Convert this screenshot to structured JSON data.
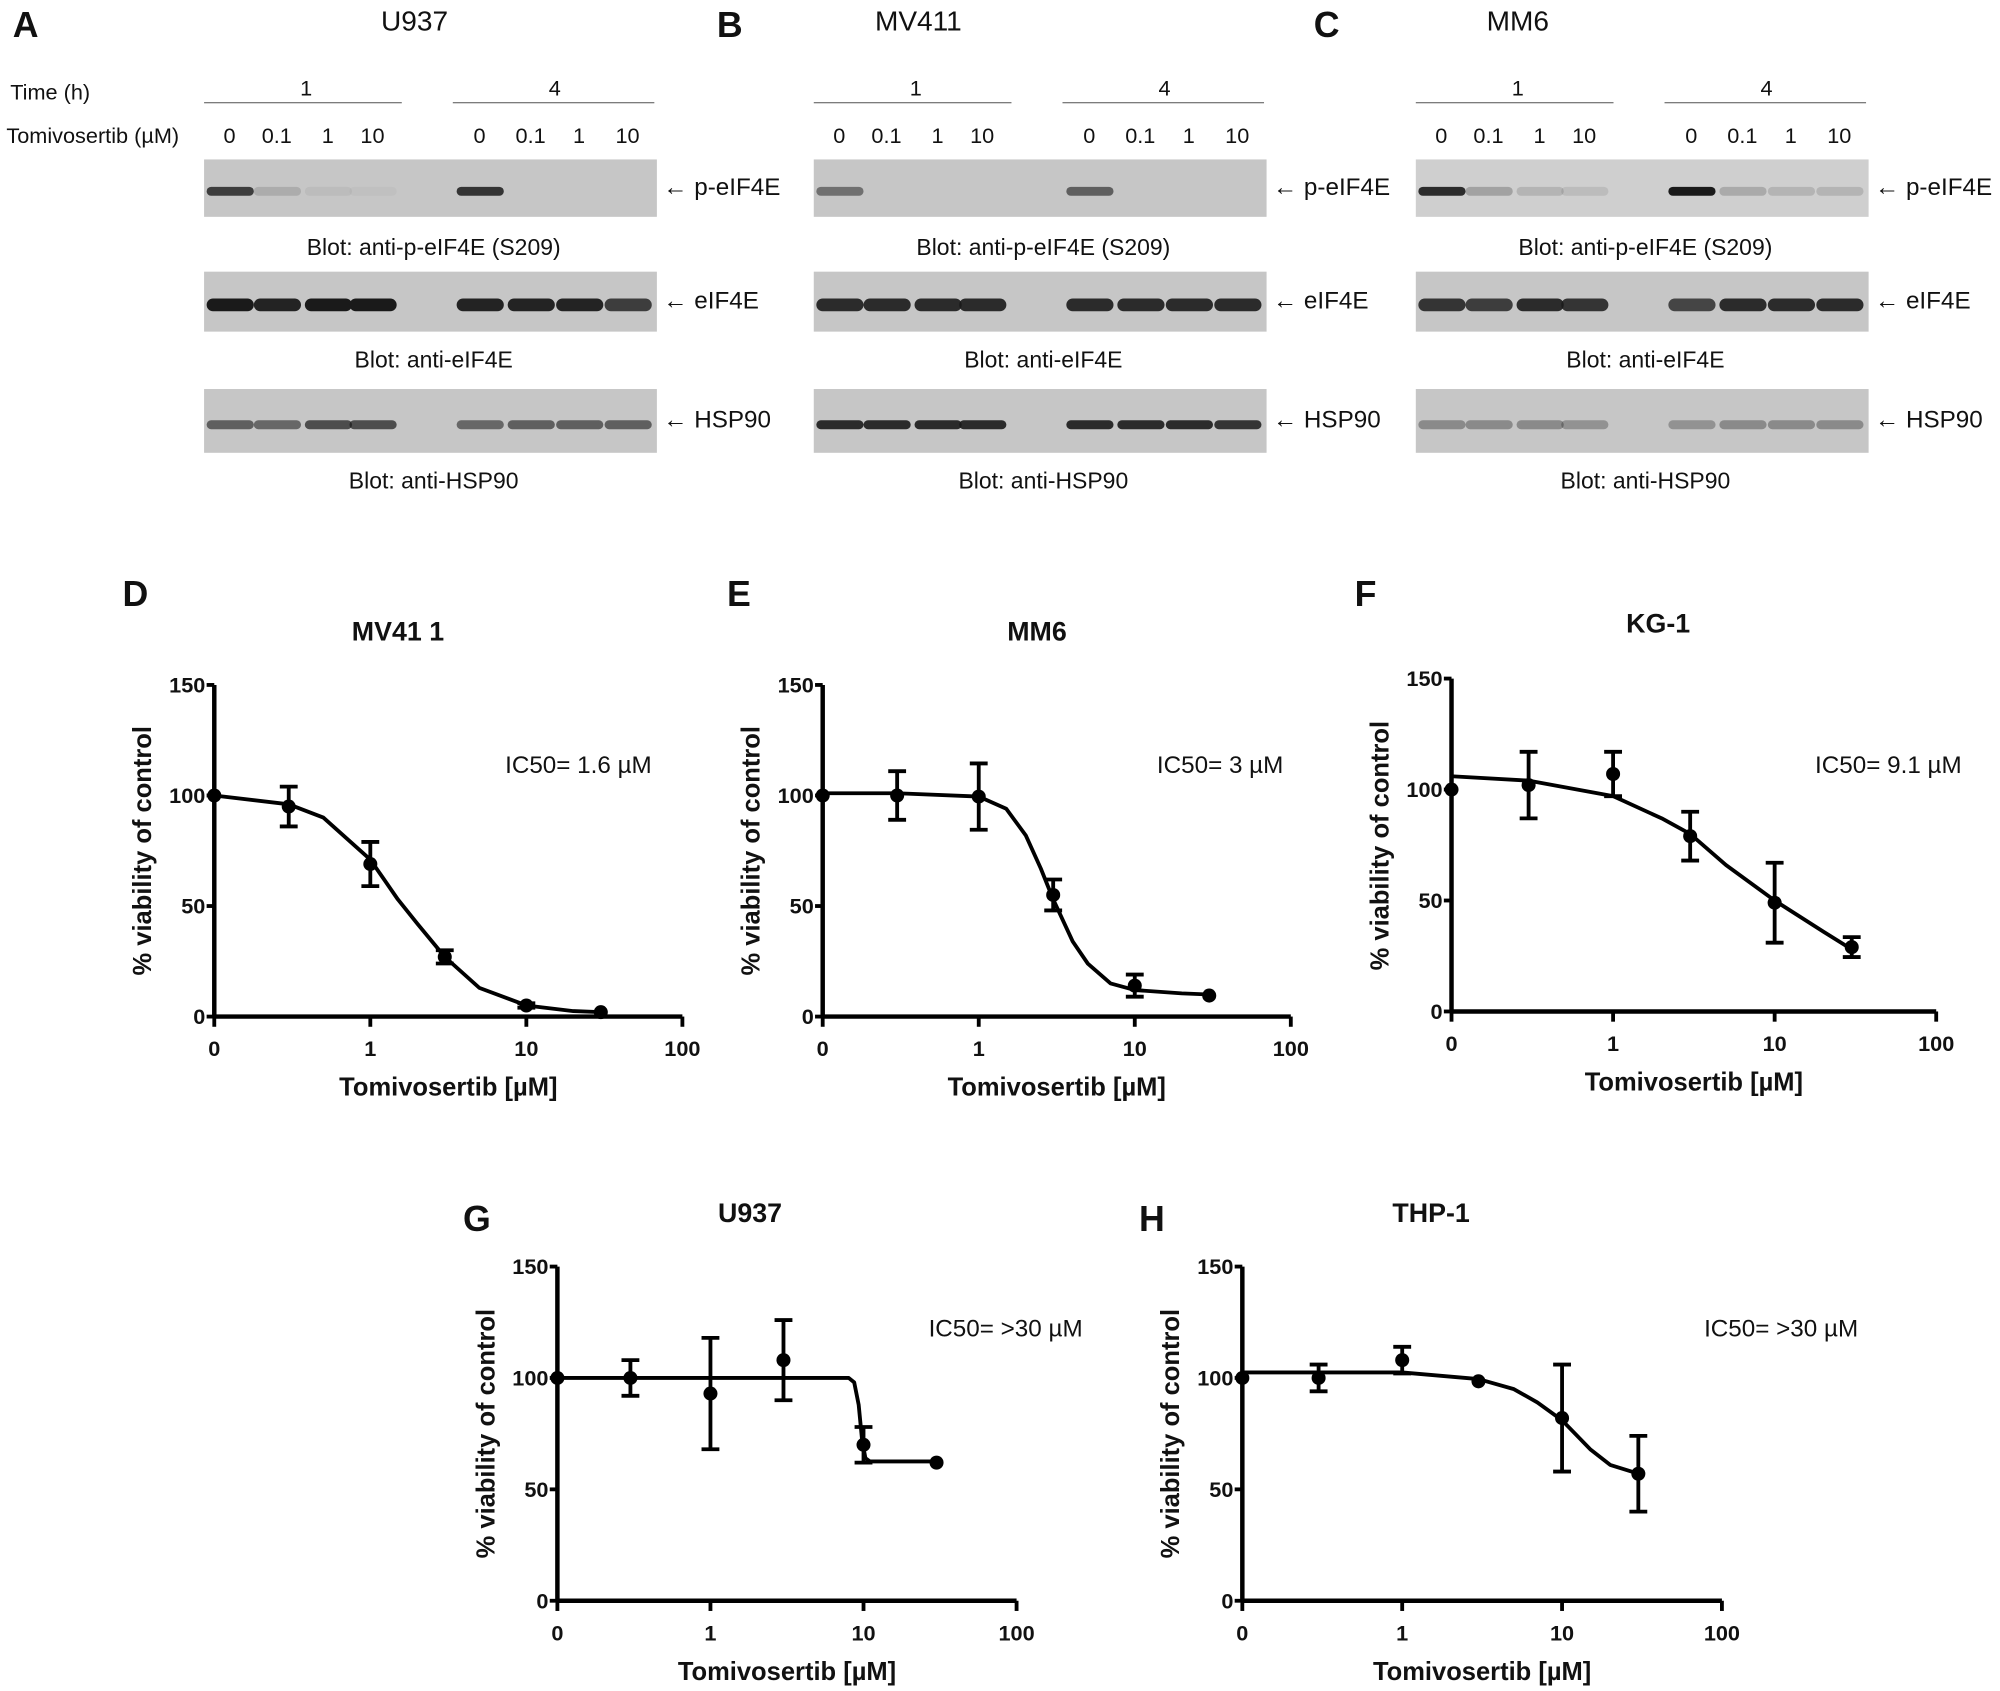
{
  "blot_panels": [
    {
      "letter": "A",
      "cell_line": "U937",
      "time_label": "Time (h)",
      "times": [
        "1",
        "4"
      ],
      "dose_label": "Tomivosertib (µM)",
      "doses": [
        "0",
        "0.1",
        "1",
        "10",
        "0",
        "0.1",
        "1",
        "10"
      ],
      "blots": [
        {
          "target": "p-eIF4E",
          "caption": "Blot: anti-p-eIF4E (S209)",
          "band_intensity": [
            0.8,
            0.15,
            0.05,
            0.03,
            0.85,
            0,
            0,
            0
          ]
        },
        {
          "target": "eIF4E",
          "caption": "Blot: anti-eIF4E",
          "band_intensity": [
            1,
            0.95,
            1,
            1,
            0.95,
            0.95,
            0.95,
            0.8
          ]
        },
        {
          "target": "HSP90",
          "caption": "Blot: anti-HSP90",
          "band_intensity": [
            0.6,
            0.55,
            0.7,
            0.7,
            0.55,
            0.6,
            0.6,
            0.6
          ]
        }
      ]
    },
    {
      "letter": "B",
      "cell_line": "MV411",
      "times": [
        "1",
        "4"
      ],
      "doses": [
        "0",
        "0.1",
        "1",
        "10",
        "0",
        "0.1",
        "1",
        "10"
      ],
      "blots": [
        {
          "target": "p-eIF4E",
          "caption": "Blot: anti-p-eIF4E (S209)",
          "band_intensity": [
            0.5,
            0,
            0,
            0,
            0.6,
            0,
            0,
            0
          ]
        },
        {
          "target": "eIF4E",
          "caption": "Blot: anti-eIF4E",
          "band_intensity": [
            0.9,
            0.9,
            0.9,
            0.9,
            0.9,
            0.9,
            0.9,
            0.9
          ]
        },
        {
          "target": "HSP90",
          "caption": "Blot: anti-HSP90",
          "band_intensity": [
            0.9,
            0.9,
            0.9,
            0.9,
            0.9,
            0.9,
            0.9,
            0.85
          ]
        }
      ]
    },
    {
      "letter": "C",
      "cell_line": "MM6",
      "times": [
        "1",
        "4"
      ],
      "doses": [
        "0",
        "0.1",
        "1",
        "10",
        "0",
        "0.1",
        "1",
        "10"
      ],
      "blots": [
        {
          "target": "p-eIF4E",
          "caption": "Blot: anti-p-eIF4E (S209)",
          "band_intensity": [
            0.9,
            0.25,
            0.15,
            0.1,
            1,
            0.2,
            0.15,
            0.15
          ]
        },
        {
          "target": "eIF4E",
          "caption": "Blot: anti-eIF4E",
          "band_intensity": [
            0.85,
            0.8,
            0.9,
            0.85,
            0.75,
            0.9,
            0.9,
            0.9
          ]
        },
        {
          "target": "HSP90",
          "caption": "Blot: anti-HSP90",
          "band_intensity": [
            0.35,
            0.35,
            0.35,
            0.3,
            0.3,
            0.35,
            0.35,
            0.35
          ]
        }
      ]
    }
  ],
  "chart_data": [
    {
      "letter": "D",
      "type": "scatter",
      "title": "MV41 1",
      "annotation": "IC50= 1.6 µM",
      "xlabel": "Tomivosertib [µM]",
      "ylabel": "% viability of control",
      "x_scale": "log",
      "xticks": [
        "0",
        "1",
        "10",
        "100"
      ],
      "yticks": [
        "0",
        "50",
        "100",
        "150"
      ],
      "ylim": [
        0,
        150
      ],
      "grid": false,
      "x": [
        0,
        0.3,
        1,
        3,
        10,
        30
      ],
      "y": [
        100,
        95,
        69,
        27,
        5,
        2
      ],
      "error": [
        0,
        9,
        10,
        3,
        1,
        0
      ],
      "fit_curve": [
        [
          0,
          100
        ],
        [
          0.3,
          96
        ],
        [
          0.5,
          90
        ],
        [
          1,
          71
        ],
        [
          1.5,
          53
        ],
        [
          2,
          42
        ],
        [
          3,
          27
        ],
        [
          5,
          13
        ],
        [
          10,
          5
        ],
        [
          20,
          2.5
        ],
        [
          30,
          2
        ]
      ]
    },
    {
      "letter": "E",
      "type": "scatter",
      "title": "MM6",
      "annotation": "IC50= 3 µM",
      "xlabel": "Tomivosertib [µM]",
      "ylabel": "% viability of control",
      "x_scale": "log",
      "xticks": [
        "0",
        "1",
        "10",
        "100"
      ],
      "yticks": [
        "0",
        "50",
        "100",
        "150"
      ],
      "ylim": [
        0,
        150
      ],
      "grid": false,
      "x": [
        0,
        0.3,
        1,
        3,
        10,
        30
      ],
      "y": [
        100,
        100,
        99.5,
        55,
        14,
        9.5
      ],
      "error": [
        0,
        11,
        15,
        7,
        5,
        0
      ],
      "fit_curve": [
        [
          0,
          101
        ],
        [
          0.3,
          101
        ],
        [
          1,
          99.5
        ],
        [
          1.5,
          94
        ],
        [
          2,
          82
        ],
        [
          2.5,
          67
        ],
        [
          3,
          53
        ],
        [
          4,
          34
        ],
        [
          5,
          24
        ],
        [
          7,
          15
        ],
        [
          10,
          12
        ],
        [
          20,
          10.5
        ],
        [
          30,
          10
        ]
      ]
    },
    {
      "letter": "F",
      "type": "scatter",
      "title": "KG-1",
      "annotation": "IC50= 9.1 µM",
      "xlabel": "Tomivosertib [µM]",
      "ylabel": "% viability of control",
      "x_scale": "log",
      "xticks": [
        "0",
        "1",
        "10",
        "100"
      ],
      "yticks": [
        "0",
        "50",
        "100",
        "150"
      ],
      "ylim": [
        0,
        150
      ],
      "grid": false,
      "x": [
        0,
        0.3,
        1,
        3,
        10,
        30
      ],
      "y": [
        100,
        102,
        107,
        79,
        49,
        29
      ],
      "error": [
        0,
        15,
        10,
        11,
        18,
        4.5
      ],
      "fit_curve": [
        [
          0,
          106
        ],
        [
          0.3,
          104
        ],
        [
          1,
          97
        ],
        [
          2,
          87
        ],
        [
          3,
          80
        ],
        [
          5,
          66
        ],
        [
          10,
          50
        ],
        [
          20,
          36
        ],
        [
          30,
          28
        ]
      ]
    },
    {
      "letter": "G",
      "type": "scatter",
      "title": "U937",
      "annotation": "IC50= >30 µM",
      "xlabel": "Tomivosertib [µM]",
      "ylabel": "% viability of control",
      "x_scale": "log",
      "xticks": [
        "0",
        "1",
        "10",
        "100"
      ],
      "yticks": [
        "0",
        "50",
        "100",
        "150"
      ],
      "ylim": [
        0,
        150
      ],
      "grid": false,
      "x": [
        0,
        0.3,
        1,
        3,
        10,
        30
      ],
      "y": [
        100,
        100,
        93,
        108,
        70,
        62
      ],
      "error": [
        0,
        8,
        25,
        18,
        8,
        0
      ],
      "fit_curve": [
        [
          0,
          100
        ],
        [
          8,
          100
        ],
        [
          8.7,
          98
        ],
        [
          9.3,
          88
        ],
        [
          9.8,
          72
        ],
        [
          10.3,
          64
        ],
        [
          11,
          62.5
        ],
        [
          30,
          62.5
        ]
      ]
    },
    {
      "letter": "H",
      "type": "scatter",
      "title": "THP-1",
      "annotation": "IC50= >30 µM",
      "xlabel": "Tomivosertib [µM]",
      "ylabel": "% viability of control",
      "x_scale": "log",
      "xticks": [
        "0",
        "1",
        "10",
        "100"
      ],
      "yticks": [
        "0",
        "50",
        "100",
        "150"
      ],
      "ylim": [
        0,
        150
      ],
      "grid": false,
      "x": [
        0,
        0.3,
        1,
        3,
        10,
        30
      ],
      "y": [
        100,
        100,
        108,
        98.5,
        82,
        57
      ],
      "error": [
        0,
        6,
        6,
        0,
        24,
        17
      ],
      "fit_curve": [
        [
          0,
          102.5
        ],
        [
          1,
          102.5
        ],
        [
          3,
          99.5
        ],
        [
          5,
          95
        ],
        [
          7,
          89
        ],
        [
          10,
          81
        ],
        [
          15,
          68
        ],
        [
          20,
          61
        ],
        [
          30,
          57
        ]
      ]
    }
  ]
}
